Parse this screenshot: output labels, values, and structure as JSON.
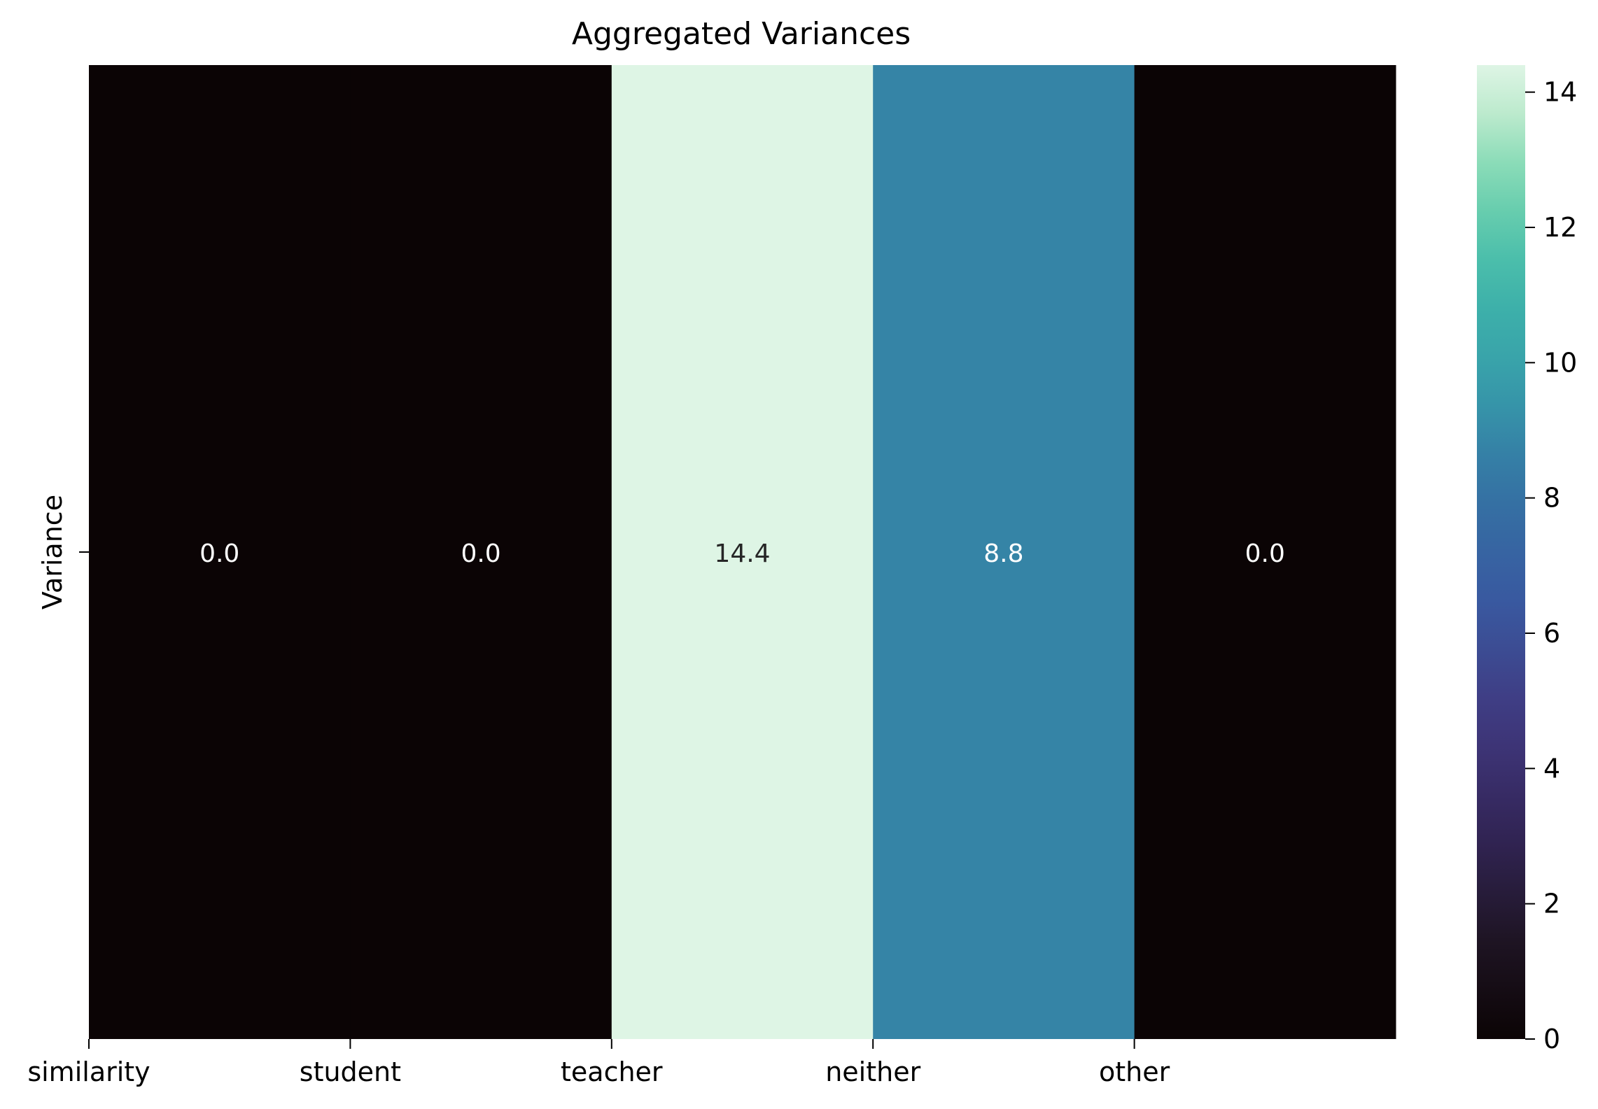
{
  "chart_data": {
    "type": "heatmap",
    "title": "Aggregated Variances",
    "row_labels": [
      "Variance"
    ],
    "categories": [
      "similarity",
      "student",
      "teacher",
      "neither",
      "other"
    ],
    "values": [
      [
        0.0,
        0.0,
        14.4,
        8.8,
        0.0
      ]
    ],
    "value_labels": [
      [
        "0.0",
        "0.0",
        "14.4",
        "8.8",
        "0.0"
      ]
    ],
    "colorbar": {
      "range": [
        0,
        14.4
      ],
      "ticks": [
        0,
        2,
        4,
        6,
        8,
        10,
        12,
        14
      ],
      "colormap": "mako"
    },
    "legend": "colorbar-right"
  }
}
